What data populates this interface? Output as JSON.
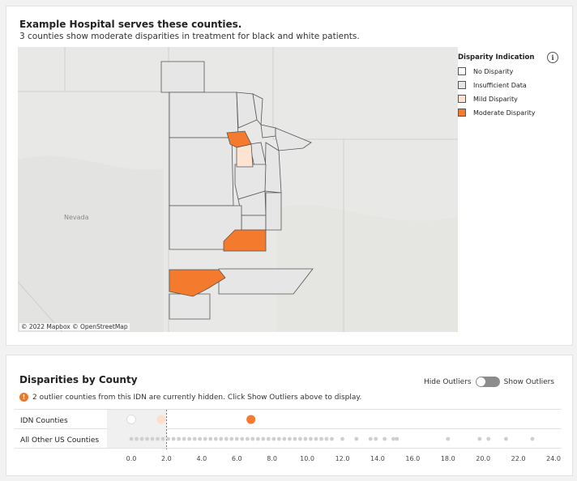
{
  "top_panel": {
    "title": "Example Hospital serves these counties.",
    "subtitle": "3 counties show moderate disparities in treatment for black and white patients.",
    "map": {
      "state_label": "Nevada",
      "attribution": "© 2022 Mapbox © OpenStreetMap"
    },
    "legend": {
      "title": "Disparity Indication",
      "info_icon": "info-icon",
      "items": [
        {
          "label": "No Disparity",
          "color": "#ffffff"
        },
        {
          "label": "Insufficient Data",
          "color": "#e6e6e6"
        },
        {
          "label": "Mild Disparity",
          "color": "#fde4d2"
        },
        {
          "label": "Moderate Disparity",
          "color": "#f47b2e"
        }
      ]
    }
  },
  "bottom_panel": {
    "title": "Disparities by County",
    "toggle": {
      "left_label": "Hide Outliers",
      "right_label": "Show Outliers",
      "state": "hidden"
    },
    "notice": {
      "icon": "warning-icon",
      "count": "2",
      "text": "outlier counties from this IDN are currently hidden. Click Show Outliers above to display."
    },
    "rows": [
      {
        "label": "IDN Counties"
      },
      {
        "label": "All Other US Counties"
      }
    ],
    "chart_data": {
      "type": "scatter",
      "x_ticks": [
        "0.0",
        "2.0",
        "4.0",
        "6.0",
        "8.0",
        "10.0",
        "12.0",
        "14.0",
        "16.0",
        "18.0",
        "20.0",
        "22.0",
        "24.0"
      ],
      "xlim": [
        -0.5,
        24.5
      ],
      "reference_line": 2.0,
      "series": [
        {
          "name": "IDN Counties",
          "points": [
            {
              "x": 0.0,
              "color": "#ffffff"
            },
            {
              "x": 1.7,
              "color": "#fde0cb"
            },
            {
              "x": 6.8,
              "color": "#f47b2e"
            }
          ]
        },
        {
          "name": "All Other US Counties",
          "values": [
            0.0,
            0.3,
            0.6,
            0.9,
            1.2,
            1.5,
            1.8,
            2.1,
            2.4,
            2.7,
            3.0,
            3.3,
            3.6,
            3.9,
            4.2,
            4.5,
            4.8,
            5.1,
            5.4,
            5.7,
            6.0,
            6.3,
            6.6,
            6.9,
            7.2,
            7.5,
            7.8,
            8.1,
            8.4,
            8.7,
            9.0,
            9.3,
            9.6,
            9.9,
            10.2,
            10.5,
            10.8,
            11.1,
            11.4,
            12.0,
            12.8,
            13.6,
            13.9,
            14.4,
            14.9,
            15.1,
            18.0,
            19.8,
            20.3,
            21.3,
            22.8
          ]
        }
      ]
    }
  }
}
